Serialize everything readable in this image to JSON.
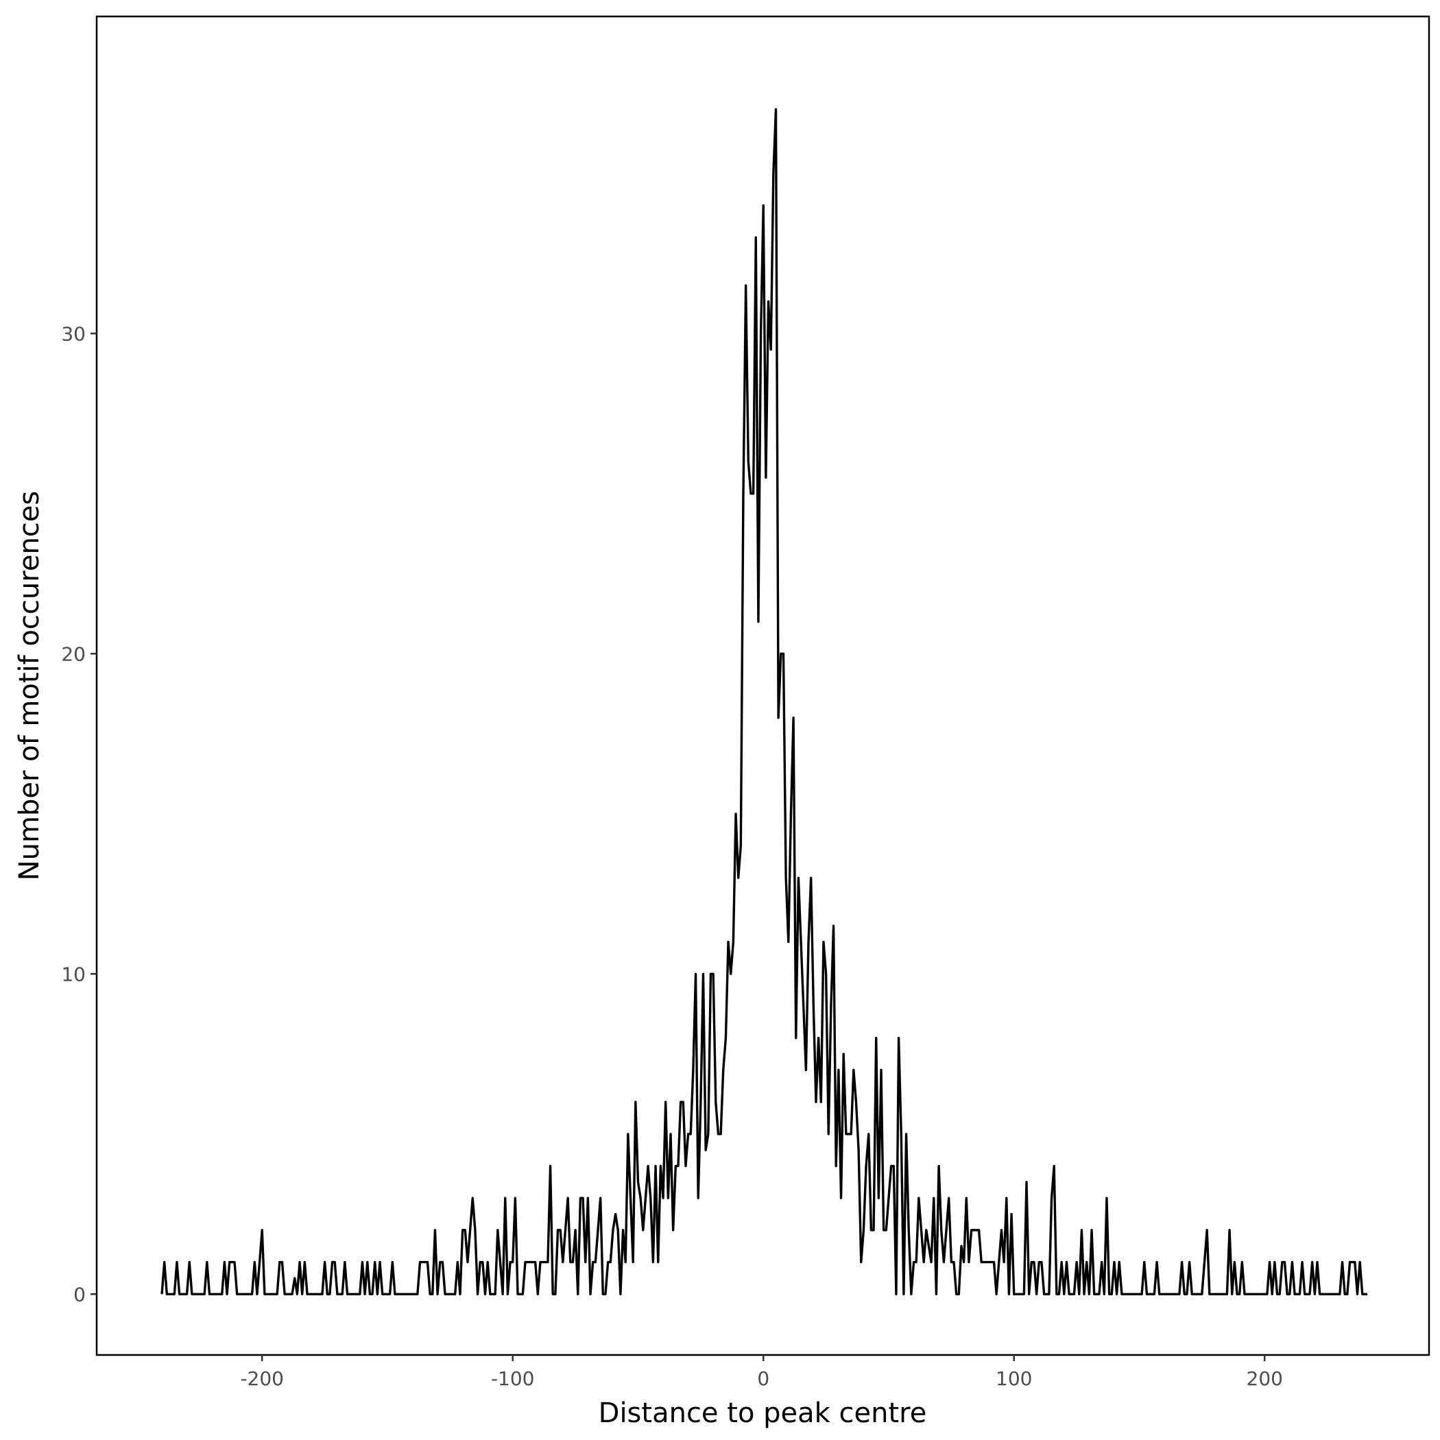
{
  "chart_data": {
    "type": "line",
    "x_label": "Distance to peak centre",
    "y_label": "Number of motif occurences",
    "xlim": [
      -266,
      265.6
    ],
    "ylim": [
      -1.9,
      39.9
    ],
    "xticks": [
      -200,
      -100,
      0,
      100,
      200
    ],
    "yticks": [
      0,
      10,
      20,
      30
    ],
    "grid": false,
    "series": [
      {
        "name": "occurences",
        "color": "#000000",
        "x": [
          -240,
          -239,
          -238,
          -237,
          -236,
          -235,
          -234,
          -233,
          -232,
          -231,
          -230,
          -229,
          -228,
          -227,
          -226,
          -225,
          -224,
          -223,
          -222,
          -221,
          -220,
          -219,
          -218,
          -217,
          -216,
          -215,
          -214,
          -213,
          -212,
          -211,
          -210,
          -209,
          -208,
          -207,
          -206,
          -205,
          -204,
          -203,
          -202,
          -201,
          -200,
          -199,
          -198,
          -197,
          -196,
          -195,
          -194,
          -193,
          -192,
          -191,
          -190,
          -189,
          -188,
          -187,
          -186,
          -185,
          -184,
          -183,
          -182,
          -181,
          -180,
          -179,
          -178,
          -177,
          -176,
          -175,
          -174,
          -173,
          -172,
          -171,
          -170,
          -169,
          -168,
          -167,
          -166,
          -165,
          -164,
          -163,
          -162,
          -161,
          -160,
          -159,
          -158,
          -157,
          -156,
          -155,
          -154,
          -153,
          -152,
          -151,
          -150,
          -149,
          -148,
          -147,
          -146,
          -145,
          -144,
          -143,
          -142,
          -141,
          -140,
          -139,
          -138,
          -137,
          -136,
          -135,
          -134,
          -133,
          -132,
          -131,
          -130,
          -129,
          -128,
          -127,
          -126,
          -125,
          -124,
          -123,
          -122,
          -121,
          -120,
          -119,
          -118,
          -117,
          -116,
          -115,
          -114,
          -113,
          -112,
          -111,
          -110,
          -109,
          -108,
          -107,
          -106,
          -105,
          -104,
          -103,
          -102,
          -101,
          -100,
          -99,
          -98,
          -97,
          -96,
          -95,
          -94,
          -93,
          -92,
          -91,
          -90,
          -89,
          -88,
          -87,
          -86,
          -85,
          -84,
          -83,
          -82,
          -81,
          -80,
          -79,
          -78,
          -77,
          -76,
          -75,
          -74,
          -73,
          -72,
          -71,
          -70,
          -69,
          -68,
          -67,
          -66,
          -65,
          -64,
          -63,
          -62,
          -61,
          -60,
          -59,
          -58,
          -57,
          -56,
          -55,
          -54,
          -53,
          -52,
          -51,
          -50,
          -49,
          -48,
          -47,
          -46,
          -45,
          -44,
          -43,
          -42,
          -41,
          -40,
          -39,
          -38,
          -37,
          -36,
          -35,
          -34,
          -33,
          -32,
          -31,
          -30,
          -29,
          -28,
          -27,
          -26,
          -25,
          -24,
          -23,
          -22,
          -21,
          -20,
          -19,
          -18,
          -17,
          -16,
          -15,
          -14,
          -13,
          -12,
          -11,
          -10,
          -9,
          -8,
          -7,
          -6,
          -5,
          -4,
          -3,
          -2,
          -1,
          0,
          1,
          2,
          3,
          4,
          5,
          6,
          7,
          8,
          9,
          10,
          11,
          12,
          13,
          14,
          15,
          16,
          17,
          18,
          19,
          20,
          21,
          22,
          23,
          24,
          25,
          26,
          27,
          28,
          29,
          30,
          31,
          32,
          33,
          34,
          35,
          36,
          37,
          38,
          39,
          40,
          41,
          42,
          43,
          44,
          45,
          46,
          47,
          48,
          49,
          50,
          51,
          52,
          53,
          54,
          55,
          56,
          57,
          58,
          59,
          60,
          61,
          62,
          63,
          64,
          65,
          66,
          67,
          68,
          69,
          70,
          71,
          72,
          73,
          74,
          75,
          76,
          77,
          78,
          79,
          80,
          81,
          82,
          83,
          84,
          85,
          86,
          87,
          88,
          89,
          90,
          91,
          92,
          93,
          94,
          95,
          96,
          97,
          98,
          99,
          100,
          101,
          102,
          103,
          104,
          105,
          106,
          107,
          108,
          109,
          110,
          111,
          112,
          113,
          114,
          115,
          116,
          117,
          118,
          119,
          120,
          121,
          122,
          123,
          124,
          125,
          126,
          127,
          128,
          129,
          130,
          131,
          132,
          133,
          134,
          135,
          136,
          137,
          138,
          139,
          140,
          141,
          142,
          143,
          144,
          145,
          146,
          147,
          148,
          149,
          150,
          151,
          152,
          153,
          154,
          155,
          156,
          157,
          158,
          159,
          160,
          161,
          162,
          163,
          164,
          165,
          166,
          167,
          168,
          169,
          170,
          171,
          172,
          173,
          174,
          175,
          176,
          177,
          178,
          179,
          180,
          181,
          182,
          183,
          184,
          185,
          186,
          187,
          188,
          189,
          190,
          191,
          192,
          193,
          194,
          195,
          196,
          197,
          198,
          199,
          200,
          201,
          202,
          203,
          204,
          205,
          206,
          207,
          208,
          209,
          210,
          211,
          212,
          213,
          214,
          215,
          216,
          217,
          218,
          219,
          220,
          221,
          222,
          223,
          224,
          225,
          226,
          227,
          228,
          229,
          230,
          231,
          232,
          233,
          234,
          235,
          236,
          237,
          238,
          239,
          240,
          241
        ],
        "values": [
          0,
          1,
          0,
          0,
          0,
          0,
          1,
          0,
          0,
          0,
          0,
          1,
          0,
          0,
          0,
          0,
          0,
          0,
          1,
          0,
          0,
          0,
          0,
          0,
          0,
          1,
          0,
          1,
          1,
          1,
          0,
          0,
          0,
          0,
          0,
          0,
          0,
          1,
          0,
          1,
          2,
          0,
          0,
          0,
          0,
          0,
          0,
          1,
          1,
          0,
          0,
          0,
          0,
          0.5,
          0,
          1,
          0,
          1,
          0,
          0,
          0,
          0,
          0,
          0,
          0,
          1,
          0,
          0,
          1,
          1,
          0,
          0,
          0,
          1,
          0,
          0,
          0,
          0,
          0,
          0,
          1,
          0,
          1,
          0,
          0,
          1,
          0,
          1,
          0,
          0,
          0,
          0,
          1,
          0,
          0,
          0,
          0,
          0,
          0,
          0,
          0,
          0,
          0,
          1,
          1,
          1,
          1,
          0,
          0,
          2,
          0,
          1,
          1,
          0,
          0,
          0,
          0,
          0,
          1,
          0,
          2,
          2,
          1,
          2,
          3,
          2,
          0,
          1,
          1,
          0,
          1,
          0,
          0,
          0,
          2,
          1,
          0,
          3,
          0,
          1,
          1,
          3,
          0,
          0,
          0,
          1,
          1,
          1,
          1,
          1,
          0,
          1,
          1,
          1,
          1,
          4,
          0,
          0,
          2,
          2,
          1,
          2,
          3,
          1,
          1,
          2,
          0,
          3,
          3,
          1,
          3,
          0,
          1,
          1,
          2,
          3,
          0,
          0,
          1,
          1,
          2,
          2.5,
          2,
          0,
          2,
          1,
          5,
          3,
          1,
          6,
          3.5,
          3,
          2,
          3,
          4,
          3,
          1,
          4,
          1,
          4,
          3,
          6,
          3,
          5,
          2,
          4,
          4,
          6,
          6,
          4,
          5,
          5,
          7,
          10,
          3,
          6,
          10,
          4.5,
          5,
          10,
          10,
          6,
          5,
          5,
          7,
          8,
          11,
          10,
          11,
          15,
          13,
          14,
          25,
          31.5,
          26,
          25,
          25,
          33,
          21,
          30,
          34,
          25.5,
          31,
          29.5,
          35,
          37,
          18,
          20,
          20,
          13,
          11,
          15,
          18,
          8,
          13,
          11,
          9,
          7,
          11,
          13,
          9,
          6,
          8,
          6,
          11,
          10,
          5,
          9,
          11.5,
          4,
          7,
          3,
          7.5,
          5,
          5,
          5,
          7,
          6,
          4.5,
          1,
          2,
          4,
          5,
          2,
          2,
          8,
          3,
          7,
          2,
          2,
          3,
          4,
          4,
          0,
          8,
          5,
          0,
          5,
          2,
          0,
          1,
          1,
          3,
          2,
          1,
          2,
          1.5,
          1,
          3,
          0,
          4,
          2,
          1,
          2,
          3,
          1,
          1,
          0,
          0,
          1.5,
          1,
          3,
          1,
          2,
          2,
          2,
          2,
          1,
          1,
          1,
          1,
          1,
          1,
          0,
          1,
          2,
          1,
          3,
          0,
          2.5,
          0,
          0,
          0,
          0,
          0,
          3.5,
          0,
          1,
          1,
          0,
          1,
          1,
          0,
          0,
          0,
          3,
          4,
          0,
          0,
          1,
          0,
          1,
          0,
          0,
          0,
          1,
          0,
          2,
          0,
          1,
          0,
          2,
          0,
          0,
          0,
          1,
          0,
          3,
          0,
          0,
          1,
          0,
          1,
          0,
          0,
          0,
          0,
          0,
          0,
          0,
          0,
          0,
          1,
          0,
          0,
          0,
          0,
          1,
          0,
          0,
          0,
          0,
          0,
          0,
          0,
          0,
          0,
          1,
          0,
          0,
          1,
          0,
          0,
          0,
          0,
          0,
          1,
          2,
          0,
          0,
          0,
          0,
          0,
          0,
          0,
          0,
          2,
          0,
          1,
          0,
          0,
          1,
          0,
          0,
          0,
          0,
          0,
          0,
          0,
          0,
          0,
          0,
          1,
          0,
          1,
          0,
          0,
          1,
          1,
          0,
          0,
          1,
          0,
          0,
          0,
          1,
          0,
          0,
          0,
          1,
          0,
          1,
          0,
          0,
          0,
          0,
          0,
          0,
          0,
          0,
          0,
          1,
          0,
          0,
          1,
          1,
          1,
          0,
          1,
          0,
          0,
          0
        ]
      }
    ]
  }
}
